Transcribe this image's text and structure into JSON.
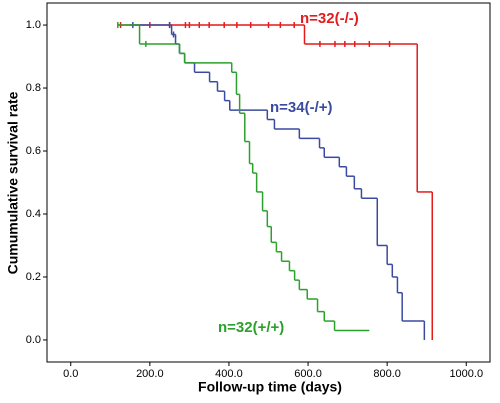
{
  "chart_data": {
    "type": "survival",
    "x_label": "Follow-up time (days)",
    "y_label": "Cumumulative survival rate",
    "xlim": [
      -60,
      1060
    ],
    "ylim": [
      -0.07,
      1.07
    ],
    "xticks": [
      {
        "value": 0,
        "label": "0.0"
      },
      {
        "value": 200,
        "label": "200.0"
      },
      {
        "value": 400,
        "label": "400.0"
      },
      {
        "value": 600,
        "label": "600.0"
      },
      {
        "value": 800,
        "label": "800.0"
      },
      {
        "value": 1000,
        "label": "1000.0"
      }
    ],
    "yticks": [
      {
        "value": 0,
        "label": "0.0"
      },
      {
        "value": 0.2,
        "label": "0.2"
      },
      {
        "value": 0.4,
        "label": "0.4"
      },
      {
        "value": 0.6,
        "label": "0.6"
      },
      {
        "value": 0.8,
        "label": "0.8"
      },
      {
        "value": 1.0,
        "label": "1.0"
      }
    ],
    "series": [
      {
        "name": "n=32(-/-)",
        "color": "#e41a1c",
        "x": [
          119,
          591,
          876,
          914
        ],
        "values": [
          1.0,
          0.94,
          0.47,
          0.0
        ],
        "censored": [
          126,
          200,
          250,
          290,
          300,
          325,
          350,
          388,
          420,
          455,
          500,
          530,
          565,
          630,
          668,
          693,
          718,
          755,
          806
        ]
      },
      {
        "name": "n=34(-/+)",
        "color": "#3a4aa0",
        "x": [
          149,
          255,
          265,
          275,
          288,
          313,
          351,
          371,
          389,
          402,
          497,
          515,
          578,
          629,
          641,
          679,
          697,
          717,
          735,
          775,
          800,
          813,
          826,
          838,
          894
        ],
        "values": [
          1.0,
          0.97,
          0.94,
          0.91,
          0.88,
          0.85,
          0.82,
          0.79,
          0.76,
          0.73,
          0.7,
          0.67,
          0.64,
          0.61,
          0.58,
          0.55,
          0.52,
          0.48,
          0.45,
          0.3,
          0.24,
          0.2,
          0.15,
          0.06,
          0.0
        ],
        "censored": [
          157,
          250,
          260
        ]
      },
      {
        "name": "n=32(+/+)",
        "color": "#2ca02c",
        "x": [
          119,
          174,
          275,
          288,
          407,
          419,
          427,
          440,
          452,
          460,
          470,
          485,
          497,
          507,
          520,
          533,
          553,
          566,
          578,
          598,
          624,
          641,
          667,
          755
        ],
        "values": [
          1.0,
          0.94,
          0.91,
          0.88,
          0.85,
          0.78,
          0.72,
          0.63,
          0.56,
          0.53,
          0.47,
          0.41,
          0.36,
          0.31,
          0.28,
          0.25,
          0.22,
          0.19,
          0.16,
          0.13,
          0.09,
          0.06,
          0.03,
          0.03
        ],
        "censored": [
          119,
          190
        ]
      }
    ]
  }
}
